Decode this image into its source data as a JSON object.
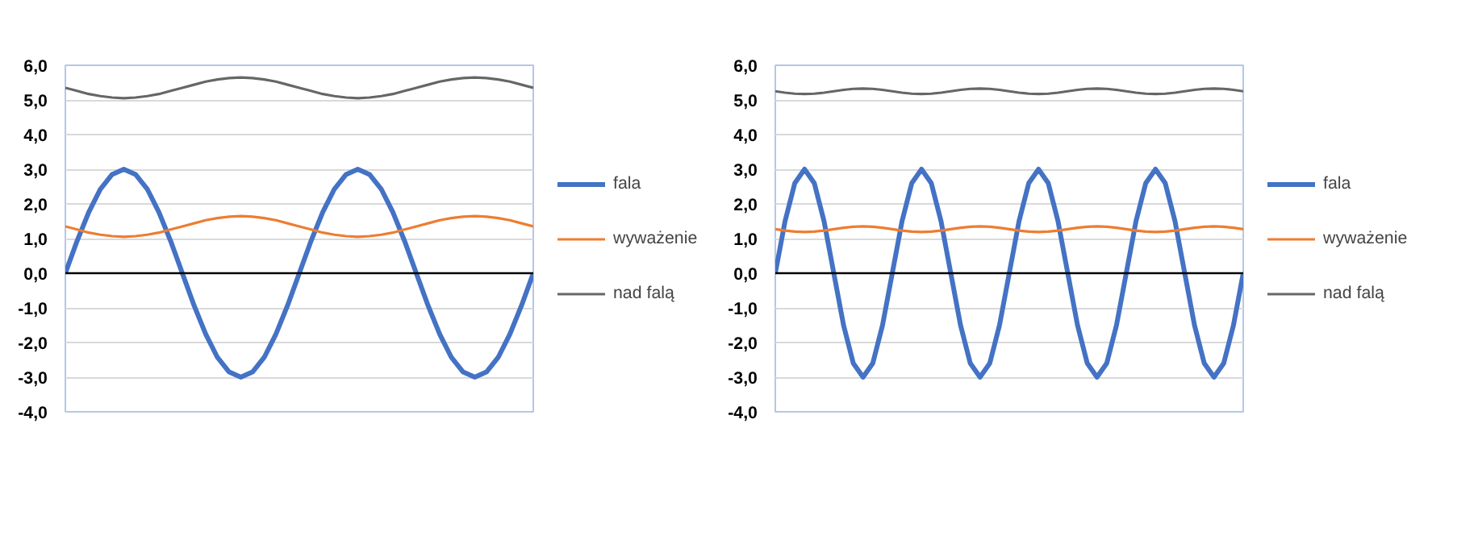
{
  "chart_data": [
    {
      "type": "line",
      "legend": "right",
      "grid": "y",
      "marker": "none",
      "line_style": "solid",
      "tick_labels": "y",
      "ylim": [
        -4,
        6
      ],
      "yticks": [
        {
          "value": -4,
          "label": "-4,0"
        },
        {
          "value": -3,
          "label": "-3,0"
        },
        {
          "value": -2,
          "label": "-2,0"
        },
        {
          "value": -1,
          "label": "-1,0"
        },
        {
          "value": 0,
          "label": "0,0"
        },
        {
          "value": 1,
          "label": "1,0"
        },
        {
          "value": 2,
          "label": "2,0"
        },
        {
          "value": 3,
          "label": "3,0"
        },
        {
          "value": 4,
          "label": "4,0"
        },
        {
          "value": 5,
          "label": "5,0"
        },
        {
          "value": 6,
          "label": "6,0"
        }
      ],
      "categories": [
        null,
        null,
        null,
        null,
        null,
        null,
        null,
        null,
        null,
        null,
        null,
        null,
        null,
        null,
        null,
        null,
        null,
        null,
        null,
        null,
        null,
        null,
        null,
        null,
        null,
        null,
        null,
        null,
        null,
        null,
        null,
        null,
        null,
        null,
        null,
        null,
        null,
        null,
        null,
        null,
        null
      ],
      "series": [
        {
          "name": "fala",
          "color": "#4472c4",
          "values": [
            0,
            0.93,
            1.76,
            2.43,
            2.85,
            3,
            2.85,
            2.43,
            1.76,
            0.93,
            0,
            -0.93,
            -1.76,
            -2.43,
            -2.85,
            -3,
            -2.85,
            -2.43,
            -1.76,
            -0.93,
            0,
            0.93,
            1.76,
            2.43,
            2.85,
            3,
            2.85,
            2.43,
            1.76,
            0.93,
            0,
            -0.93,
            -1.76,
            -2.43,
            -2.85,
            -3,
            -2.85,
            -2.43,
            -1.76,
            -0.93,
            0
          ]
        },
        {
          "name": "wyważenie",
          "color": "#ed7d31",
          "values": [
            1.35,
            1.26,
            1.17,
            1.11,
            1.07,
            1.05,
            1.07,
            1.11,
            1.17,
            1.26,
            1.35,
            1.44,
            1.53,
            1.59,
            1.63,
            1.65,
            1.63,
            1.59,
            1.53,
            1.44,
            1.35,
            1.26,
            1.17,
            1.11,
            1.07,
            1.05,
            1.07,
            1.11,
            1.17,
            1.26,
            1.35,
            1.44,
            1.53,
            1.59,
            1.63,
            1.65,
            1.63,
            1.59,
            1.53,
            1.44,
            1.35
          ]
        },
        {
          "name": "nad falą",
          "color": "#666666",
          "values": [
            5.35,
            5.26,
            5.17,
            5.11,
            5.07,
            5.05,
            5.07,
            5.11,
            5.17,
            5.26,
            5.35,
            5.44,
            5.53,
            5.59,
            5.63,
            5.65,
            5.63,
            5.59,
            5.53,
            5.44,
            5.35,
            5.26,
            5.17,
            5.11,
            5.07,
            5.05,
            5.07,
            5.11,
            5.17,
            5.26,
            5.35,
            5.44,
            5.53,
            5.59,
            5.63,
            5.65,
            5.63,
            5.59,
            5.53,
            5.44,
            5.35
          ]
        }
      ]
    },
    {
      "type": "line",
      "legend": "right",
      "grid": "y",
      "marker": "none",
      "line_style": "solid",
      "tick_labels": "y",
      "ylim": [
        -4,
        6
      ],
      "yticks": [
        {
          "value": -4,
          "label": "-4,0"
        },
        {
          "value": -3,
          "label": "-3,0"
        },
        {
          "value": -2,
          "label": "-2,0"
        },
        {
          "value": -1,
          "label": "-1,0"
        },
        {
          "value": 0,
          "label": "0,0"
        },
        {
          "value": 1,
          "label": "1,0"
        },
        {
          "value": 2,
          "label": "2,0"
        },
        {
          "value": 3,
          "label": "3,0"
        },
        {
          "value": 4,
          "label": "4,0"
        },
        {
          "value": 5,
          "label": "5,0"
        },
        {
          "value": 6,
          "label": "6,0"
        }
      ],
      "categories": [
        null,
        null,
        null,
        null,
        null,
        null,
        null,
        null,
        null,
        null,
        null,
        null,
        null,
        null,
        null,
        null,
        null,
        null,
        null,
        null,
        null,
        null,
        null,
        null,
        null,
        null,
        null,
        null,
        null,
        null,
        null,
        null,
        null,
        null,
        null,
        null,
        null,
        null,
        null,
        null,
        null,
        null,
        null,
        null,
        null,
        null,
        null,
        null,
        null
      ],
      "series": [
        {
          "name": "fala",
          "color": "#4472c4",
          "values": [
            0,
            1.5,
            2.6,
            3,
            2.6,
            1.5,
            0,
            -1.5,
            -2.6,
            -3,
            -2.6,
            -1.5,
            0,
            1.5,
            2.6,
            3,
            2.6,
            1.5,
            0,
            -1.5,
            -2.6,
            -3,
            -2.6,
            -1.5,
            0,
            1.5,
            2.6,
            3,
            2.6,
            1.5,
            0,
            -1.5,
            -2.6,
            -3,
            -2.6,
            -1.5,
            0,
            1.5,
            2.6,
            3,
            2.6,
            1.5,
            0,
            -1.5,
            -2.6,
            -3,
            -2.6,
            -1.5,
            0
          ]
        },
        {
          "name": "wyważenie",
          "color": "#ed7d31",
          "values": [
            1.27,
            1.23,
            1.2,
            1.19,
            1.2,
            1.23,
            1.27,
            1.31,
            1.34,
            1.35,
            1.34,
            1.31,
            1.27,
            1.23,
            1.2,
            1.19,
            1.2,
            1.23,
            1.27,
            1.31,
            1.34,
            1.35,
            1.34,
            1.31,
            1.27,
            1.23,
            1.2,
            1.19,
            1.2,
            1.23,
            1.27,
            1.31,
            1.34,
            1.35,
            1.34,
            1.31,
            1.27,
            1.23,
            1.2,
            1.19,
            1.2,
            1.23,
            1.27,
            1.31,
            1.34,
            1.35,
            1.34,
            1.31,
            1.27
          ]
        },
        {
          "name": "nad falą",
          "color": "#666666",
          "values": [
            5.25,
            5.21,
            5.18,
            5.17,
            5.18,
            5.21,
            5.25,
            5.29,
            5.32,
            5.33,
            5.32,
            5.29,
            5.25,
            5.21,
            5.18,
            5.17,
            5.18,
            5.21,
            5.25,
            5.29,
            5.32,
            5.33,
            5.32,
            5.29,
            5.25,
            5.21,
            5.18,
            5.17,
            5.18,
            5.21,
            5.25,
            5.29,
            5.32,
            5.33,
            5.32,
            5.29,
            5.25,
            5.21,
            5.18,
            5.17,
            5.18,
            5.21,
            5.25,
            5.29,
            5.32,
            5.33,
            5.32,
            5.29,
            5.25
          ]
        }
      ]
    }
  ]
}
